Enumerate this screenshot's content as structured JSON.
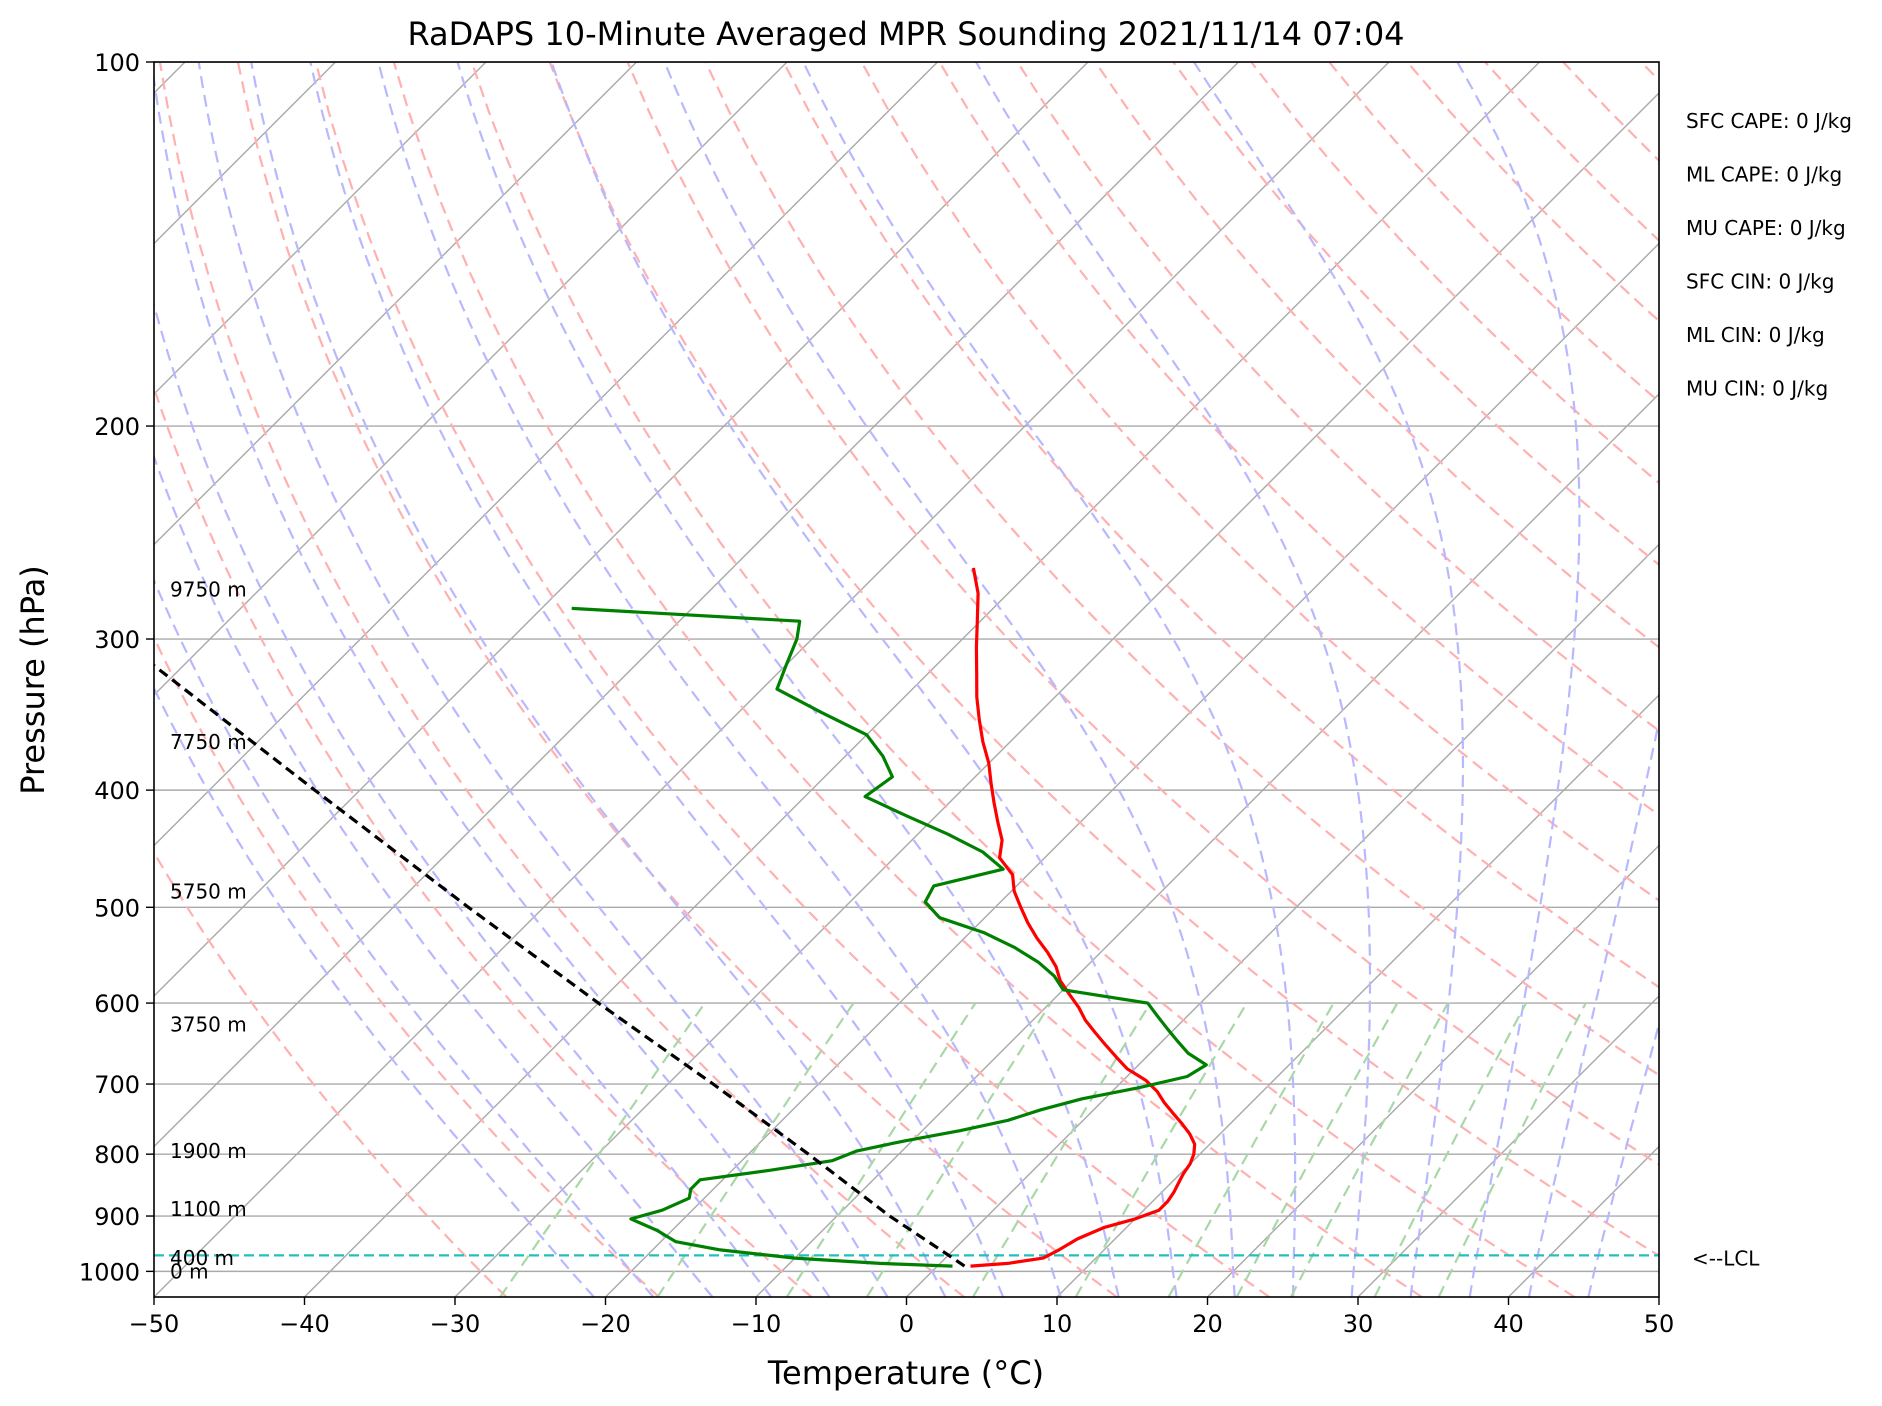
{
  "chart_data": {
    "type": "line",
    "subtype": "skew-t log-p",
    "title": "RaDAPS 10-Minute Averaged MPR Sounding 2021/11/14 07:04",
    "xlabel": "Temperature (°C)",
    "ylabel": "Pressure (hPa)",
    "xlim": [
      -50,
      50
    ],
    "ylim": [
      1050,
      100
    ],
    "yscale": "log",
    "grid": true,
    "x_ticks": [
      "−50",
      "−40",
      "−30",
      "−20",
      "−10",
      "0",
      "10",
      "20",
      "30",
      "40",
      "50"
    ],
    "y_ticks": [
      "100",
      "200",
      "300",
      "400",
      "500",
      "600",
      "700",
      "800",
      "900",
      "1000"
    ],
    "series": [
      {
        "color": "#ff0000",
        "pressure": [
          990,
          985,
          975,
          960,
          940,
          920,
          905,
          890,
          875,
          860,
          845,
          830,
          815,
          800,
          785,
          770,
          755,
          740,
          725,
          710,
          695,
          680,
          665,
          650,
          635,
          620,
          605,
          590,
          575,
          560,
          545,
          530,
          515,
          500,
          485,
          470,
          455,
          440,
          425,
          410,
          395,
          380,
          365,
          350,
          335,
          320,
          305,
          290,
          275,
          262
        ],
        "temperature": [
          2.2,
          4.5,
          6.5,
          7.0,
          7.5,
          8.5,
          10.0,
          11.0,
          11.0,
          10.8,
          10.5,
          10.2,
          10.0,
          9.6,
          9.0,
          8.0,
          6.8,
          5.5,
          4.2,
          3.0,
          1.5,
          -0.5,
          -2.0,
          -3.5,
          -5.0,
          -6.5,
          -7.8,
          -9.3,
          -10.8,
          -12.0,
          -13.5,
          -15.2,
          -16.8,
          -18.3,
          -19.8,
          -21.0,
          -23.0,
          -24.0,
          -25.5,
          -27.0,
          -28.5,
          -30.0,
          -31.8,
          -33.5,
          -35.2,
          -36.8,
          -38.5,
          -40.2,
          -42.0,
          -44.0
        ]
      },
      {
        "color": "#008000",
        "pressure": [
          990,
          985,
          975,
          960,
          945,
          925,
          905,
          890,
          870,
          855,
          840,
          825,
          810,
          795,
          780,
          765,
          750,
          735,
          720,
          705,
          690,
          675,
          660,
          645,
          630,
          615,
          600,
          585,
          570,
          555,
          540,
          525,
          510,
          495,
          480,
          465,
          450,
          435,
          420,
          405,
          390,
          375,
          360,
          345,
          330,
          315,
          300,
          290,
          283
        ],
        "temperature": [
          1.0,
          -4.0,
          -10.0,
          -15.5,
          -19.0,
          -21.0,
          -23.5,
          -22.0,
          -21.0,
          -21.5,
          -21.5,
          -17.5,
          -14.0,
          -13.0,
          -10.5,
          -7.5,
          -5.0,
          -3.5,
          -1.5,
          1.5,
          4.0,
          4.5,
          2.5,
          1.0,
          -0.5,
          -2.0,
          -3.5,
          -10.0,
          -11.5,
          -13.5,
          -16.0,
          -19.0,
          -23.0,
          -25.0,
          -25.5,
          -22.0,
          -24.5,
          -28.0,
          -32.0,
          -36.0,
          -35.5,
          -37.5,
          -40.0,
          -44.5,
          -49.0,
          -50.0,
          -51.0,
          -52.0,
          -68.0
        ]
      },
      {
        "color": "#000000",
        "pressure": [
          990,
          975,
          900,
          800,
          700,
          600,
          500,
          400,
          300,
          272
        ],
        "temperature": [
          1.8,
          0.5,
          -6.5,
          -16.0,
          -27.0,
          -40.0,
          -55.0,
          -73.0,
          -96.0,
          -104.0
        ]
      }
    ],
    "lcl_pressure": 970,
    "lcl_label": "<--LCL",
    "height_labels": [
      {
        "label": "0 m",
        "pressure": 1000
      },
      {
        "label": "400 m",
        "pressure": 975
      },
      {
        "label": "1100 m",
        "pressure": 888
      },
      {
        "label": "1900 m",
        "pressure": 795
      },
      {
        "label": "3750 m",
        "pressure": 625
      },
      {
        "label": "5750 m",
        "pressure": 485
      },
      {
        "label": "7750 m",
        "pressure": 365
      },
      {
        "label": "9750 m",
        "pressure": 273
      }
    ],
    "indices": [
      "SFC CAPE: 0 J/kg",
      "ML CAPE: 0 J/kg",
      "MU CAPE: 0 J/kg",
      "SFC CIN: 0 J/kg",
      "ML CIN: 0 J/kg",
      "MU CIN: 0 J/kg"
    ],
    "colors": {
      "isotherm": "#aaaaaa",
      "isobar": "#aaaaaa",
      "dry_adiabat": "#ffb0b0",
      "moist_adiabat": "#b8b8ff",
      "mixing_ratio": "#a8d8a8",
      "lcl": "#20c0c0"
    }
  }
}
